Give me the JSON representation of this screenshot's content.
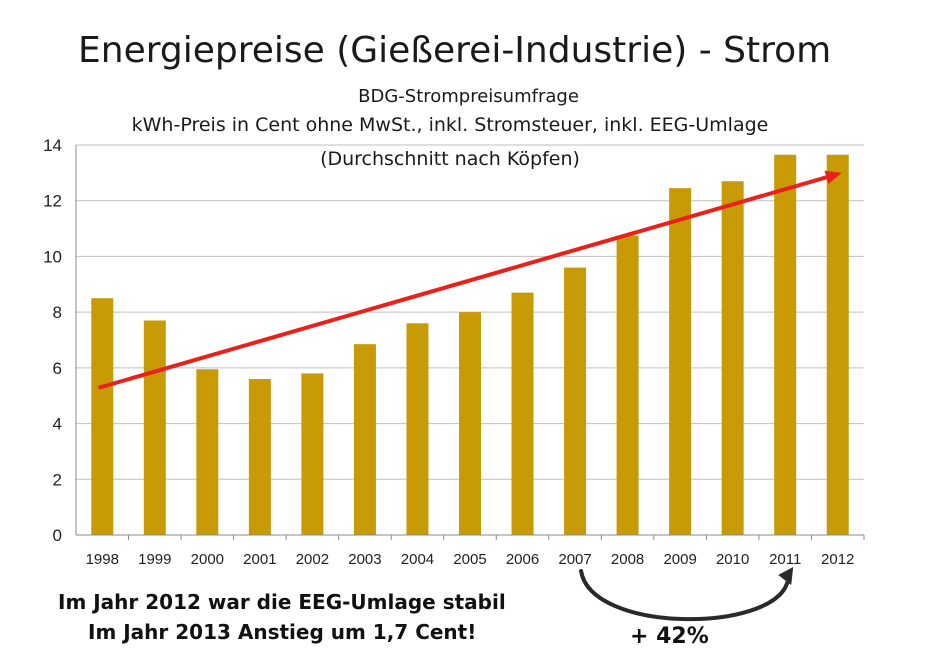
{
  "title": "Energiepreise (Gießerei-Industrie) - Strom",
  "subtitle": "BDG-Strompreisumfrage",
  "subtitle2": "kWh-Preis in Cent ohne MwSt., inkl. Stromsteuer, inkl. EEG-Umlage",
  "subtitle3": "(Durchschnitt nach Köpfen)",
  "notes": {
    "line1": "Im Jahr 2012 war die EEG-Umlage stabil",
    "line2": "Im Jahr 2013 Anstieg um 1,7 Cent!",
    "increase": "+ 42%"
  },
  "colors": {
    "bar": "#c89a06",
    "trend": "#e8211b",
    "arrow": "#2a2a2a",
    "grid": "#bfbfbf"
  },
  "chart_data": {
    "type": "bar",
    "categories": [
      "1998",
      "1999",
      "2000",
      "2001",
      "2002",
      "2003",
      "2004",
      "2005",
      "2006",
      "2007",
      "2008",
      "2009",
      "2010",
      "2011",
      "2012"
    ],
    "values": [
      8.5,
      7.7,
      5.95,
      5.6,
      5.8,
      6.85,
      7.6,
      8.0,
      8.7,
      9.6,
      10.75,
      12.45,
      12.7,
      13.65,
      13.65
    ],
    "ylim": [
      0,
      14
    ],
    "yticks": [
      0,
      2,
      4,
      6,
      8,
      10,
      12,
      14
    ],
    "grid": true,
    "trend_line": {
      "from": [
        "1998",
        5.3
      ],
      "to": [
        "2012",
        13.0
      ]
    },
    "comparison_arrow": {
      "from": "2007",
      "to": "2011",
      "label": "+ 42%"
    }
  }
}
